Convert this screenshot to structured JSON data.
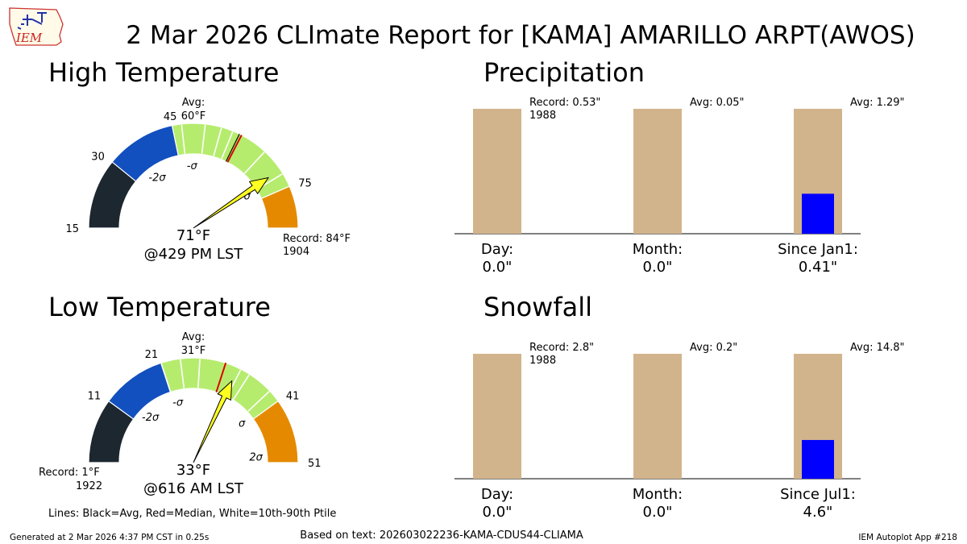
{
  "title": "2 Mar 2026 CLImate Report for [KAMA] AMARILLO ARPT(AWOS)",
  "logo_text": "IEM",
  "colors": {
    "record_low": "#1c2730",
    "below_2sigma": "#1c2730",
    "sigma_low": "#124fbf",
    "normal": "#b6ec6e",
    "sigma_high": "#e58a00",
    "median": "#dd0000",
    "needle": "#ffff22",
    "bar_avg": "#d2b48c",
    "bar_obs": "#0000ff"
  },
  "chart_data": [
    {
      "type": "gauge",
      "title": "High Temperature",
      "range": [
        15,
        84
      ],
      "ticks": [
        {
          "value": 15,
          "label": "15"
        },
        {
          "value": 30,
          "label": "30"
        },
        {
          "value": 45,
          "label": "45"
        },
        {
          "value": 75,
          "label": "75"
        }
      ],
      "segments": [
        {
          "from": 15,
          "to": 30,
          "color": "#1c2730"
        },
        {
          "from": 30,
          "to": 45,
          "color": "#124fbf"
        },
        {
          "from": 45,
          "to": 75,
          "color": "#b6ec6e"
        },
        {
          "from": 75,
          "to": 84,
          "color": "#e58a00"
        }
      ],
      "percentile_lines": [
        47,
        52,
        55.5,
        58,
        66,
        72
      ],
      "average": 59.5,
      "average_label": "Avg:",
      "average_value": "60°F",
      "median": 60,
      "sigma_labels": [
        {
          "value": 36,
          "label": "-2σ"
        },
        {
          "value": 49,
          "label": "-σ"
        },
        {
          "value": 72,
          "label": "σ"
        }
      ],
      "observed": 71,
      "observed_label": "71°F",
      "time_label": "@429 PM LST",
      "record_label": "Record: 84°F",
      "record_year": "1904",
      "record_side": "right"
    },
    {
      "type": "gauge",
      "title": "Low Temperature",
      "range": [
        1,
        51
      ],
      "ticks": [
        {
          "value": 11,
          "label": "11"
        },
        {
          "value": 21,
          "label": "21"
        },
        {
          "value": 41,
          "label": "41"
        },
        {
          "value": 51,
          "label": "51"
        }
      ],
      "segments": [
        {
          "from": 1,
          "to": 11,
          "color": "#1c2730"
        },
        {
          "from": 11,
          "to": 21,
          "color": "#124fbf"
        },
        {
          "from": 21,
          "to": 41,
          "color": "#b6ec6e"
        },
        {
          "from": 41,
          "to": 51,
          "color": "#e58a00"
        }
      ],
      "percentile_lines": [
        21,
        24,
        27,
        33.5,
        35,
        39
      ],
      "average": 31,
      "average_label": "Avg:",
      "average_value": "31°F",
      "median": 31,
      "sigma_labels": [
        {
          "value": 14,
          "label": "-2σ"
        },
        {
          "value": 22,
          "label": "-σ"
        },
        {
          "value": 40,
          "label": "σ"
        },
        {
          "value": 49.5,
          "label": "2σ"
        }
      ],
      "observed": 33,
      "observed_label": "33°F",
      "time_label": "@616 AM LST",
      "record_label": "Record: 1°F",
      "record_year": "1922",
      "record_side": "left"
    },
    {
      "type": "bar",
      "title": "Precipitation",
      "categories": [
        "Day:",
        "Month:",
        "Since Jan1:"
      ],
      "values_labels": [
        "0.0\"",
        "0.0\"",
        "0.41\""
      ],
      "observed_fraction": [
        0.0,
        0.0,
        0.32
      ],
      "annotations": [
        "Record: 0.53\"",
        "Avg: 0.05\"",
        "Avg: 1.29\""
      ],
      "annotation_sub": [
        "1988",
        "",
        ""
      ]
    },
    {
      "type": "bar",
      "title": "Snowfall",
      "categories": [
        "Day:",
        "Month:",
        "Since Jul1:"
      ],
      "values_labels": [
        "0.0\"",
        "0.0\"",
        "4.6\""
      ],
      "observed_fraction": [
        0.0,
        0.0,
        0.31
      ],
      "annotations": [
        "Record: 2.8\"",
        "Avg: 0.2\"",
        "Avg: 14.8\""
      ],
      "annotation_sub": [
        "1988",
        "",
        ""
      ]
    }
  ],
  "footer": {
    "legend": "Lines: Black=Avg, Red=Median, White=10th-90th Ptile",
    "generated": "Generated at 2 Mar 2026 4:37 PM CST in 0.25s",
    "based_on": "Based on text: 202603022236-KAMA-CDUS44-CLIAMA",
    "app": "IEM Autoplot App #218"
  }
}
